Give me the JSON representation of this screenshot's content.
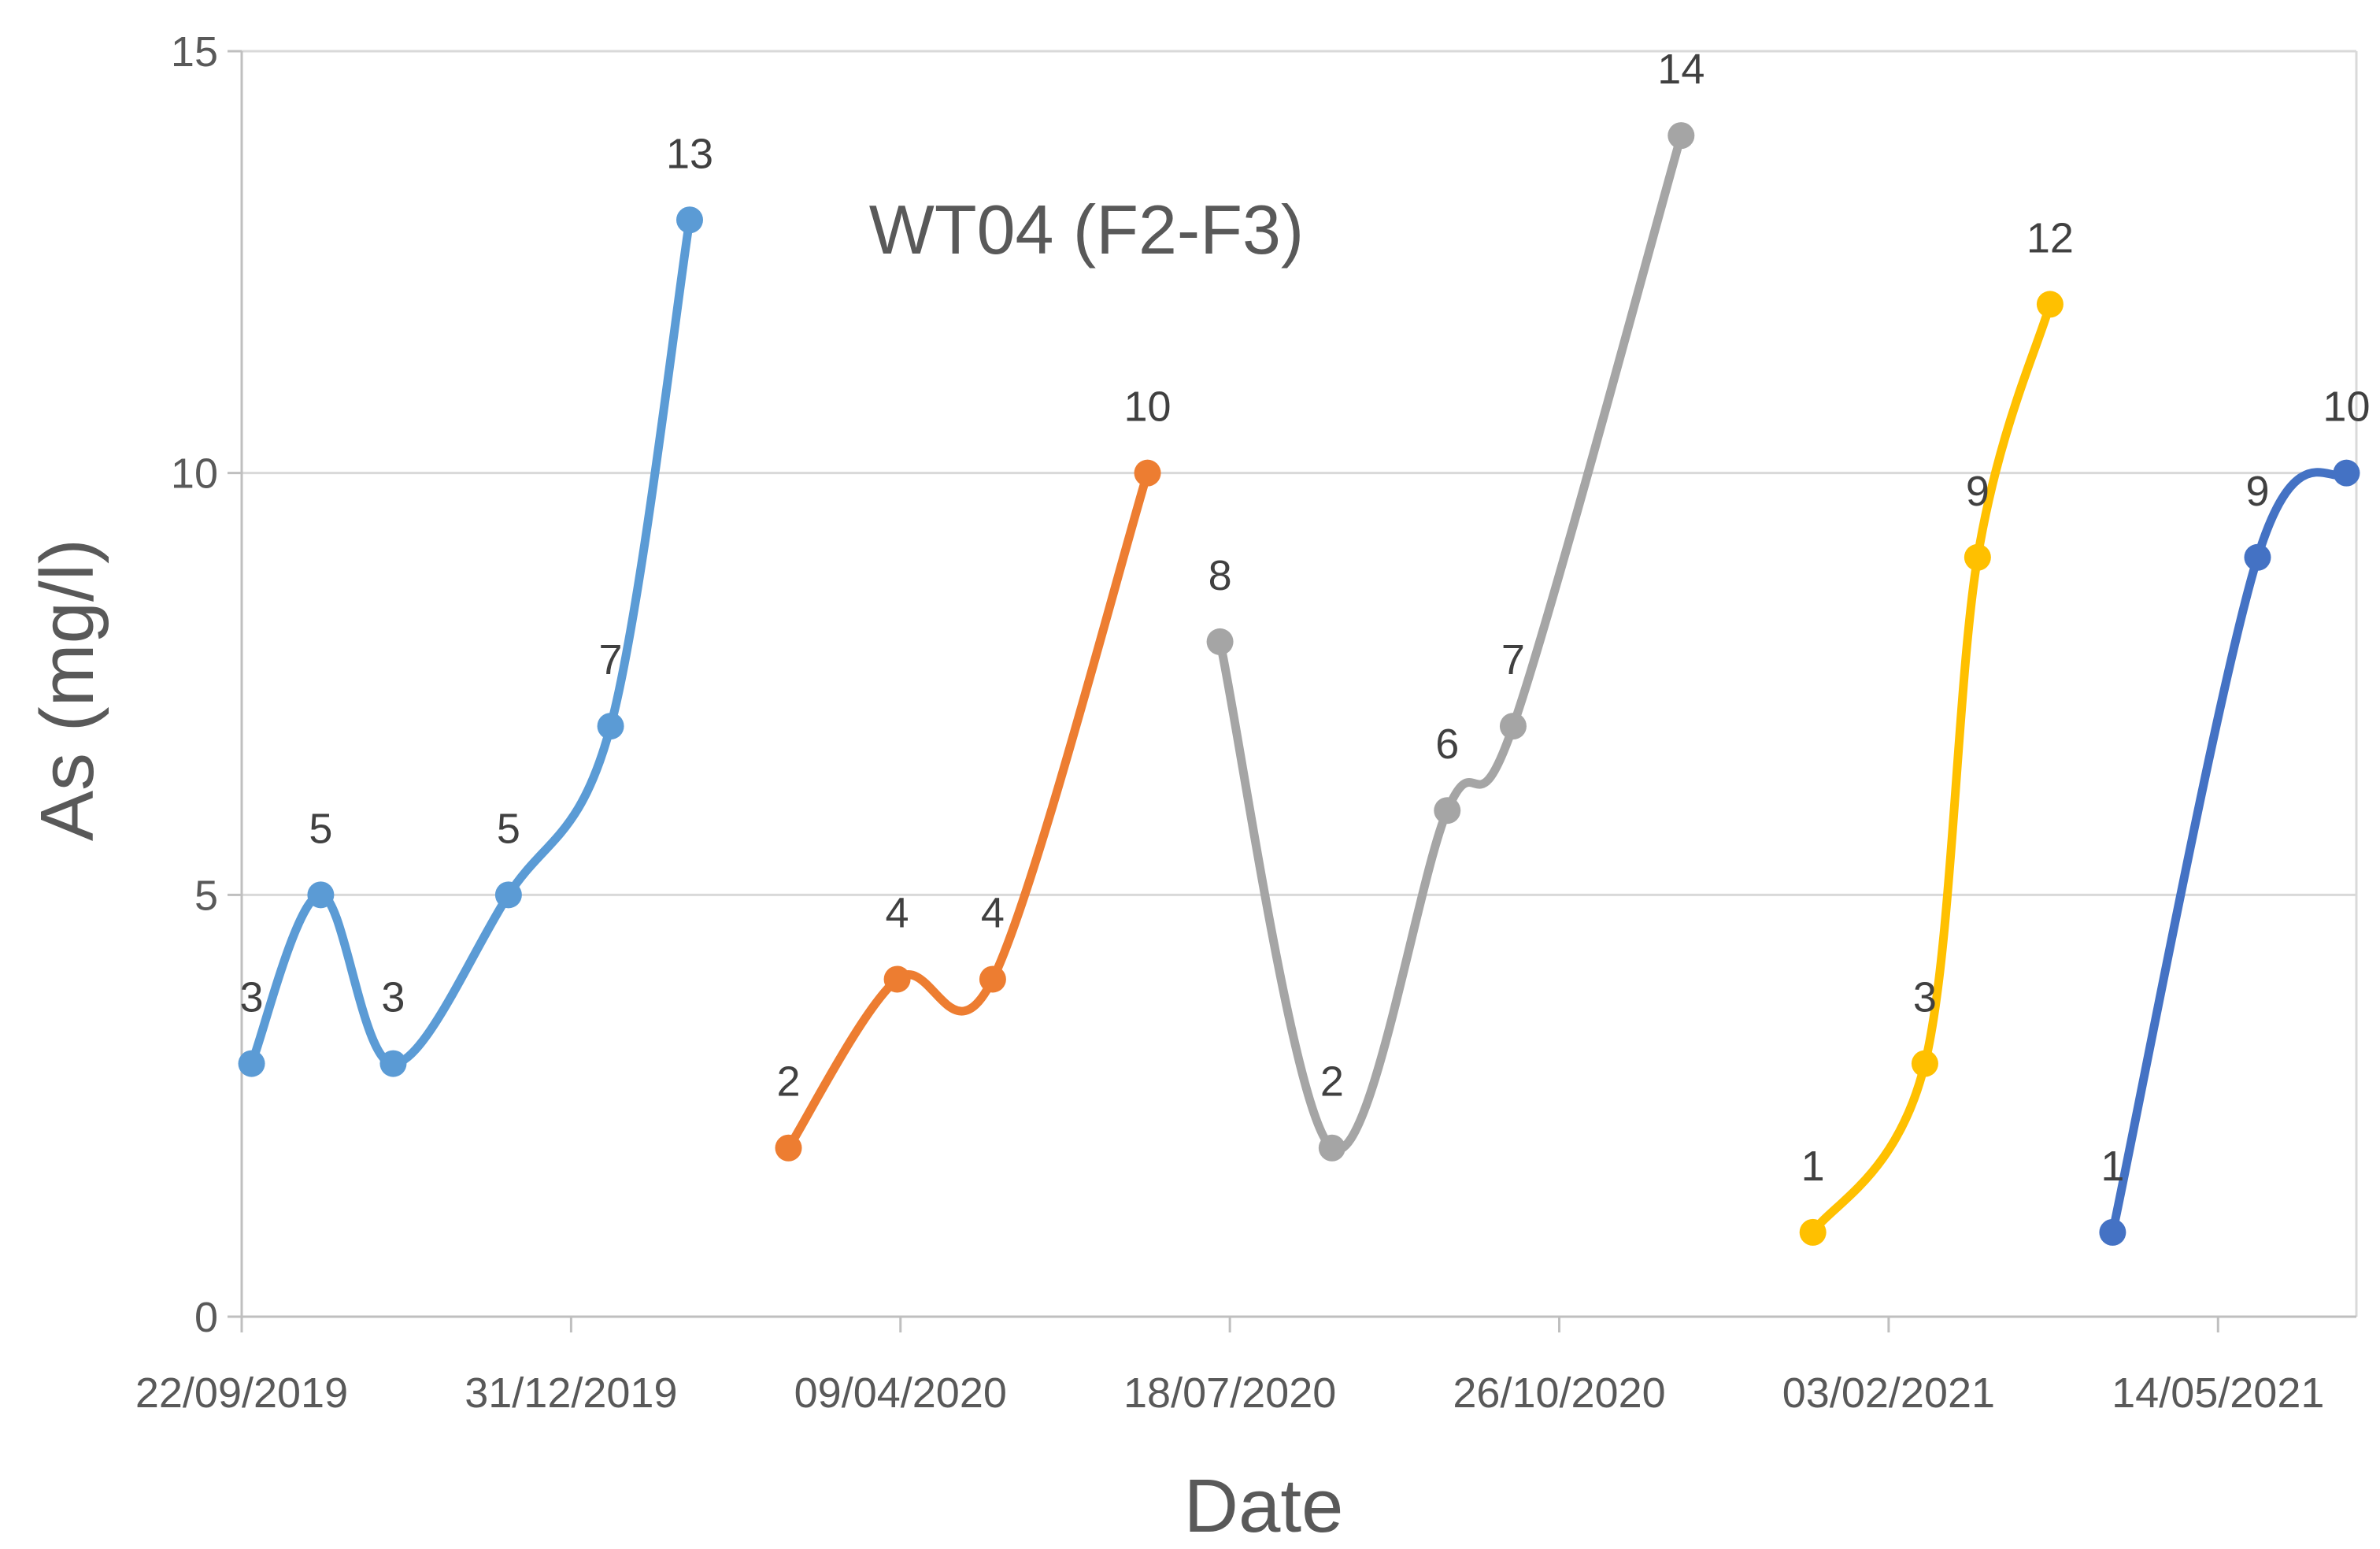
{
  "chart_data": {
    "type": "line",
    "title": "WT04 (F2-F3)",
    "xlabel": "Date",
    "ylabel": "As (mg/l)",
    "ylim": [
      0,
      15
    ],
    "yticks": [
      "0",
      "5",
      "10",
      "15"
    ],
    "xlim": [
      "2019-09-22",
      "2021-06-25"
    ],
    "xticks": [
      "22/09/2019",
      "31/12/2019",
      "09/04/2020",
      "18/07/2020",
      "26/10/2020",
      "03/02/2021",
      "14/05/2021"
    ],
    "grid": "horizontal",
    "legend": "none",
    "smoothed": true,
    "data_labels": true,
    "series": [
      {
        "color": "#5b9bd5",
        "points": [
          {
            "x": "2019-09-25",
            "y": 3
          },
          {
            "x": "2019-10-16",
            "y": 5
          },
          {
            "x": "2019-11-07",
            "y": 3
          },
          {
            "x": "2019-12-12",
            "y": 5
          },
          {
            "x": "2020-01-12",
            "y": 7
          },
          {
            "x": "2020-02-05",
            "y": 13
          }
        ]
      },
      {
        "color": "#ed7d31",
        "points": [
          {
            "x": "2020-03-06",
            "y": 2
          },
          {
            "x": "2020-04-08",
            "y": 4
          },
          {
            "x": "2020-05-07",
            "y": 4
          },
          {
            "x": "2020-06-23",
            "y": 10
          }
        ]
      },
      {
        "color": "#a5a5a5",
        "points": [
          {
            "x": "2020-07-15",
            "y": 8
          },
          {
            "x": "2020-08-18",
            "y": 2
          },
          {
            "x": "2020-09-22",
            "y": 6
          },
          {
            "x": "2020-10-12",
            "y": 7
          },
          {
            "x": "2020-12-02",
            "y": 14
          }
        ]
      },
      {
        "color": "#ffc000",
        "points": [
          {
            "x": "2021-01-11",
            "y": 1
          },
          {
            "x": "2021-02-14",
            "y": 3
          },
          {
            "x": "2021-03-02",
            "y": 9
          },
          {
            "x": "2021-03-24",
            "y": 12
          }
        ]
      },
      {
        "color": "#4472c4",
        "points": [
          {
            "x": "2021-04-12",
            "y": 1
          },
          {
            "x": "2021-05-26",
            "y": 9
          },
          {
            "x": "2021-06-22",
            "y": 10
          }
        ]
      }
    ]
  }
}
